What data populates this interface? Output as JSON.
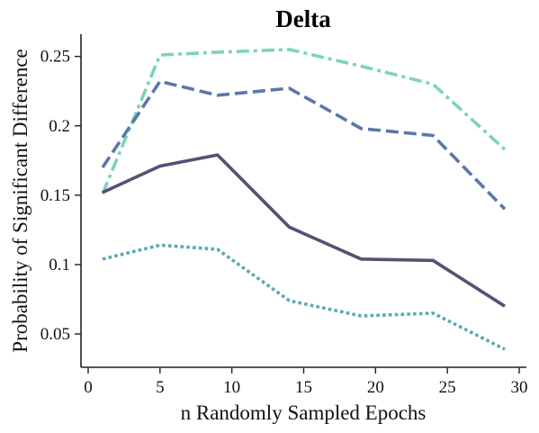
{
  "chart_data": {
    "type": "line",
    "title": "Delta",
    "xlabel": "n Randomly Sampled Epochs",
    "ylabel": "Probability of Significant Difference",
    "xlim": [
      -0.5,
      30.5
    ],
    "ylim": [
      0.026,
      0.266
    ],
    "xticks": [
      0,
      5,
      10,
      15,
      20,
      25,
      30
    ],
    "xtick_labels": [
      "0",
      "5",
      "10",
      "15",
      "20",
      "25",
      "30"
    ],
    "yticks": [
      0.05,
      0.1,
      0.15,
      0.2,
      0.25
    ],
    "ytick_labels": [
      "0.05",
      "0.1",
      "0.15",
      "0.2",
      "0.25"
    ],
    "grid": false,
    "legend": "none",
    "series": [
      {
        "style": "dashdot",
        "color": "#7dd4b8",
        "x": [
          1,
          5,
          9,
          14,
          19,
          24,
          29
        ],
        "values": [
          0.151,
          0.251,
          0.253,
          0.255,
          0.243,
          0.23,
          0.183
        ]
      },
      {
        "style": "dashed",
        "color": "#5a78a8",
        "x": [
          1,
          5,
          9,
          14,
          19,
          24,
          29
        ],
        "values": [
          0.17,
          0.232,
          0.222,
          0.227,
          0.198,
          0.193,
          0.14
        ]
      },
      {
        "style": "solid",
        "color": "#5a4e74",
        "x": [
          1,
          5,
          9,
          14,
          19,
          24,
          29
        ],
        "values": [
          0.152,
          0.171,
          0.179,
          0.127,
          0.104,
          0.103,
          0.07
        ]
      },
      {
        "style": "dotted",
        "color": "#5aabad",
        "x": [
          1,
          5,
          9,
          14,
          19,
          24,
          29
        ],
        "values": [
          0.104,
          0.114,
          0.111,
          0.074,
          0.063,
          0.065,
          0.039
        ]
      }
    ]
  }
}
